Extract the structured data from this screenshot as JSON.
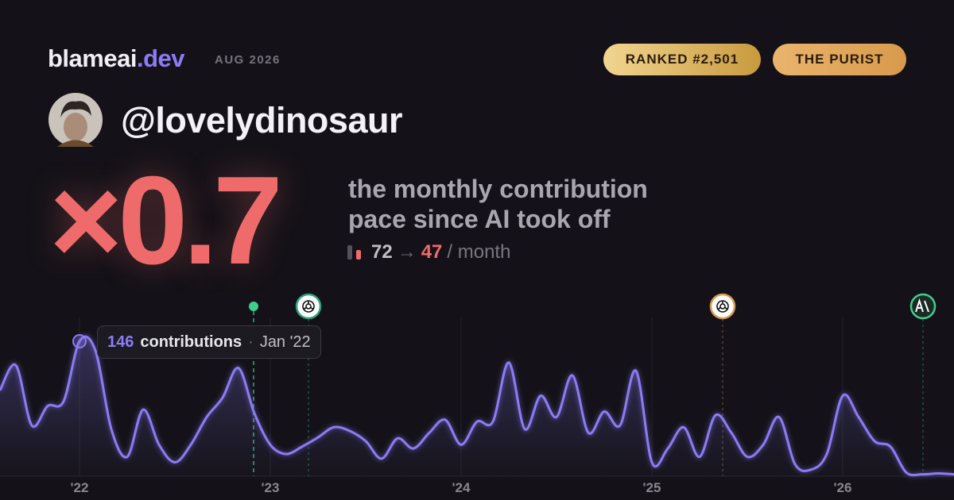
{
  "header": {
    "brand": "blameai",
    "brand_tld": ".dev",
    "date": "AUG 2026",
    "badges": [
      "RANKED #2,501",
      "THE PURIST"
    ]
  },
  "profile": {
    "handle": "@lovelydinosaur"
  },
  "stat": {
    "multiplier": "×0.7",
    "caption_line1": "the monthly contribution",
    "caption_line2": "pace since AI took off",
    "before": 72,
    "arrow": "→",
    "after": 47,
    "unit": "/ month"
  },
  "chart_data": {
    "type": "area",
    "color": "#8b7cf6",
    "categories": [
      null,
      null,
      null,
      null,
      null,
      "'22",
      null,
      null,
      null,
      null,
      null,
      null,
      null,
      null,
      null,
      null,
      null,
      "'23",
      null,
      null,
      null,
      null,
      null,
      null,
      null,
      null,
      null,
      null,
      null,
      "'24",
      null,
      null,
      null,
      null,
      null,
      null,
      null,
      null,
      null,
      null,
      null,
      "'25",
      null,
      null,
      null,
      null,
      null,
      null,
      null,
      null,
      null,
      null,
      null,
      "'26",
      null,
      null,
      null,
      null,
      null,
      null,
      null
    ],
    "values": [
      93,
      120,
      55,
      76,
      81,
      146,
      136,
      51,
      21,
      72,
      34,
      15,
      34,
      64,
      85,
      117,
      68,
      34,
      24,
      32,
      42,
      53,
      49,
      38,
      19,
      41,
      30,
      47,
      61,
      34,
      59,
      59,
      123,
      51,
      87,
      64,
      109,
      47,
      70,
      55,
      114,
      15,
      30,
      53,
      21,
      66,
      47,
      21,
      34,
      64,
      13,
      7,
      24,
      87,
      64,
      38,
      32,
      4,
      2,
      3,
      2
    ],
    "tooltip": {
      "text": "contributions",
      "separator": "·",
      "date": "Jan '22"
    }
  }
}
